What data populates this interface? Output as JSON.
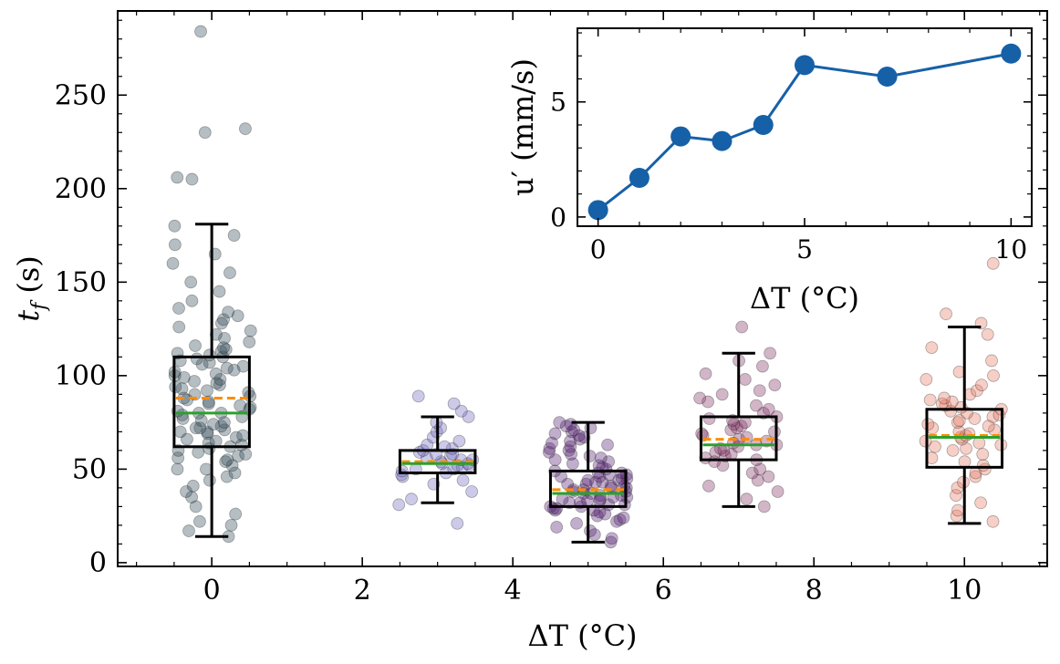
{
  "chart_data": [
    {
      "type": "box-scatter",
      "xlabel": "ΔT (°C)",
      "ylabel": "t_f (s)",
      "xlim": [
        -1.25,
        11.1
      ],
      "ylim": [
        -2,
        295
      ],
      "xticks": [
        "0",
        "2",
        "4",
        "6",
        "8",
        "10"
      ],
      "yticks": [
        "0",
        "50",
        "100",
        "150",
        "200",
        "250"
      ],
      "legend": "none",
      "groups": [
        {
          "x": 0,
          "color": "#3d5561",
          "min": 14,
          "q1": 62,
          "median": 80,
          "mean": 88,
          "q3": 110,
          "max": 181,
          "points": [
            14,
            17,
            20,
            22,
            26,
            30,
            35,
            38,
            41,
            44,
            46,
            48,
            50,
            50,
            52,
            54,
            55,
            56,
            57,
            58,
            59,
            60,
            61,
            62,
            63,
            64,
            65,
            66,
            67,
            68,
            69,
            70,
            70,
            71,
            72,
            72,
            73,
            74,
            75,
            76,
            77,
            78,
            79,
            80,
            80,
            81,
            82,
            83,
            84,
            85,
            86,
            87,
            88,
            89,
            90,
            91,
            92,
            93,
            94,
            95,
            96,
            97,
            98,
            99,
            100,
            101,
            102,
            103,
            104,
            105,
            106,
            107,
            108,
            109,
            110,
            111,
            112,
            113,
            114,
            115,
            116,
            118,
            120,
            122,
            124,
            126,
            128,
            130,
            132,
            134,
            136,
            140,
            145,
            150,
            155,
            160,
            165,
            170,
            175,
            180,
            205,
            206,
            230,
            232,
            284
          ]
        },
        {
          "x": 3,
          "color": "#7a74c2",
          "min": 32,
          "q1": 48,
          "median": 53,
          "mean": 54,
          "q3": 60,
          "max": 78,
          "points": [
            21,
            31,
            34,
            38,
            42,
            44,
            46,
            47,
            48,
            49,
            50,
            50,
            51,
            52,
            52,
            53,
            53,
            54,
            55,
            55,
            56,
            57,
            58,
            58,
            59,
            60,
            61,
            62,
            63,
            65,
            67,
            70,
            72,
            75,
            78,
            81,
            85,
            89
          ]
        },
        {
          "x": 5,
          "color": "#5b2a78",
          "min": 11,
          "q1": 30,
          "median": 37,
          "mean": 39,
          "q3": 49,
          "max": 75,
          "points": [
            11,
            13,
            15,
            17,
            19,
            21,
            22,
            23,
            24,
            25,
            26,
            27,
            28,
            28,
            29,
            29,
            30,
            30,
            31,
            31,
            32,
            32,
            33,
            33,
            34,
            34,
            35,
            35,
            36,
            36,
            37,
            37,
            38,
            38,
            39,
            39,
            40,
            40,
            41,
            41,
            42,
            42,
            43,
            43,
            44,
            44,
            45,
            45,
            46,
            46,
            47,
            47,
            48,
            48,
            49,
            50,
            51,
            52,
            53,
            54,
            55,
            56,
            57,
            58,
            59,
            60,
            61,
            62,
            63,
            64,
            65,
            66,
            67,
            68,
            69,
            70,
            71,
            72,
            73,
            74,
            75
          ]
        },
        {
          "x": 7,
          "color": "#8a3d6c",
          "min": 30,
          "q1": 55,
          "median": 63,
          "mean": 66,
          "q3": 78,
          "max": 112,
          "points": [
            30,
            34,
            38,
            41,
            44,
            46,
            48,
            50,
            52,
            54,
            55,
            56,
            57,
            58,
            59,
            60,
            61,
            62,
            63,
            63,
            64,
            65,
            66,
            67,
            68,
            69,
            70,
            71,
            72,
            73,
            74,
            75,
            76,
            77,
            78,
            80,
            82,
            84,
            86,
            88,
            90,
            92,
            95,
            98,
            101,
            105,
            108,
            112,
            126
          ]
        },
        {
          "x": 10,
          "color": "#e8826b",
          "min": 21,
          "q1": 51,
          "median": 67,
          "mean": 68,
          "q3": 82,
          "max": 126,
          "points": [
            22,
            25,
            28,
            32,
            36,
            40,
            43,
            46,
            48,
            50,
            52,
            54,
            56,
            58,
            60,
            61,
            62,
            63,
            64,
            65,
            66,
            67,
            68,
            69,
            70,
            71,
            72,
            73,
            74,
            75,
            76,
            77,
            78,
            79,
            80,
            81,
            82,
            83,
            84,
            85,
            86,
            87,
            88,
            90,
            92,
            95,
            98,
            100,
            102,
            108,
            115,
            122,
            128,
            133,
            160
          ]
        }
      ],
      "median_color": "#2ca02c",
      "mean_color": "#ff8c00"
    },
    {
      "type": "line",
      "xlabel": "ΔT (°C)",
      "ylabel": "u′ (mm/s)",
      "xlim": [
        -0.5,
        10.5
      ],
      "ylim": [
        -0.4,
        8.2
      ],
      "xticks": [
        "0",
        "5",
        "10"
      ],
      "yticks": [
        "0",
        "5"
      ],
      "x": [
        0,
        1,
        2,
        3,
        4,
        5,
        7,
        10
      ],
      "y": [
        0.3,
        1.7,
        3.5,
        3.3,
        4.0,
        6.6,
        6.1,
        7.1
      ],
      "color": "#1660a8"
    }
  ]
}
